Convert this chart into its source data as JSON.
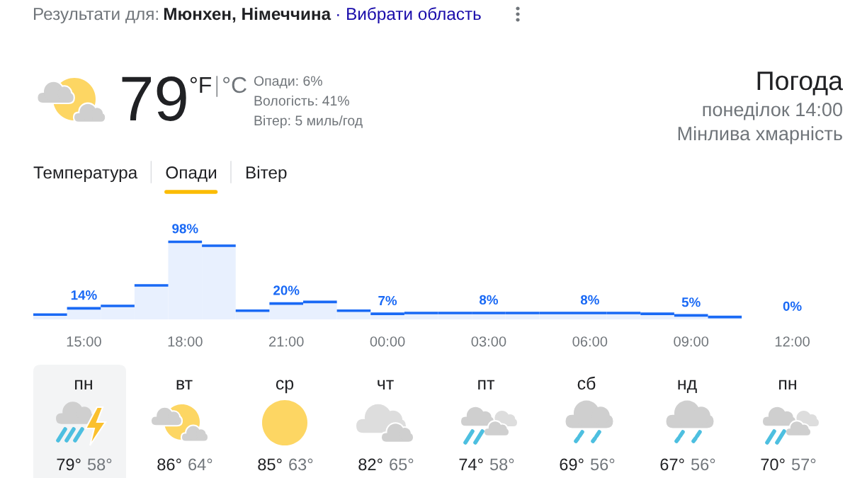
{
  "chart_data": [
    {
      "type": "other",
      "title": "Погода",
      "subtitle": "понеділок 14:00",
      "annotations": [
        "Результати для:",
        "Мюнхен, Німеччина",
        "· Вибрати область",
        "79",
        "°F",
        "°C",
        "Опади: 6%",
        "Вологість: 41%",
        "Вітер: 5 миль/год",
        "Мінлива хмарність"
      ]
    },
    {
      "type": "bar",
      "categories": [
        null,
        "15:00",
        null,
        null,
        "18:00",
        null,
        null,
        "21:00",
        null,
        null,
        "00:00",
        null,
        null,
        "03:00",
        null,
        null,
        "06:00",
        null,
        null,
        "09:00",
        null,
        null,
        "12:00",
        null
      ],
      "values": [
        6,
        14,
        17,
        43,
        98,
        93,
        11,
        20,
        22,
        11,
        7,
        8,
        8,
        8,
        8,
        8,
        8,
        8,
        7,
        5,
        3,
        0,
        0,
        0
      ],
      "value_labels": [
        null,
        "14%",
        null,
        null,
        "98%",
        null,
        null,
        "20%",
        null,
        null,
        "7%",
        null,
        null,
        "8%",
        null,
        null,
        "8%",
        null,
        null,
        "5%",
        null,
        null,
        "0%",
        null
      ],
      "color": "#e8f0fe",
      "tick_labels": "x",
      "annotations": [
        "Температура",
        "Опади",
        "Вітер"
      ]
    },
    {
      "type": "other",
      "annotations": [
        "пн",
        "79°",
        "58°",
        "вт",
        "86°",
        "64°",
        "ср",
        "85°",
        "63°",
        "чт",
        "82°",
        "65°",
        "пт",
        "74°",
        "58°",
        "сб",
        "69°",
        "56°",
        "нд",
        "67°",
        "56°",
        "пн",
        "70°",
        "57°"
      ]
    }
  ]
}
